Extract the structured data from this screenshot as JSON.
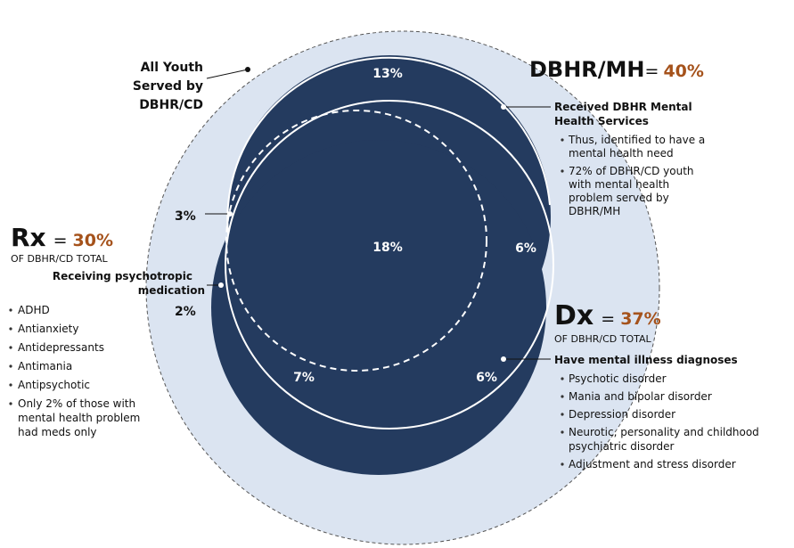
{
  "outer_label": [
    "All Youth",
    "Served by",
    "DBHR/CD"
  ],
  "regions": [
    "13%",
    "3%",
    "18%",
    "6%",
    "2%",
    "7%",
    "6%"
  ],
  "mh": {
    "name": "DBHR/MH",
    "equals": "=",
    "pct": "40%",
    "subhead": [
      "Received DBHR Mental",
      "Health Services"
    ],
    "bullets": [
      [
        "Thus, identified to have a",
        "mental health need"
      ],
      [
        "72% of DBHR/CD youth",
        "with mental health",
        "problem served by",
        "DBHR/MH"
      ]
    ]
  },
  "rx": {
    "name": "Rx",
    "equals": "=",
    "pct": "30%",
    "of_total": "OF DBHR/CD TOTAL",
    "subhead": [
      "Receiving psychotropic",
      "medication"
    ],
    "bullets": [
      [
        "ADHD"
      ],
      [
        "Antianxiety"
      ],
      [
        "Antidepressants"
      ],
      [
        "Antimania"
      ],
      [
        "Antipsychotic"
      ],
      [
        "Only 2% of those with",
        "mental health problem",
        "had meds only"
      ]
    ]
  },
  "dx": {
    "name": "Dx",
    "equals": "=",
    "pct": "37%",
    "of_total": "OF DBHR/CD TOTAL",
    "subhead": [
      "Have mental illness diagnoses"
    ],
    "bullets": [
      [
        "Psychotic disorder"
      ],
      [
        "Mania and bipolar disorder"
      ],
      [
        "Depression disorder"
      ],
      [
        "Neurotic, personality and childhood",
        "psychiatric disorder"
      ],
      [
        "Adjustment and stress disorder"
      ]
    ]
  }
}
